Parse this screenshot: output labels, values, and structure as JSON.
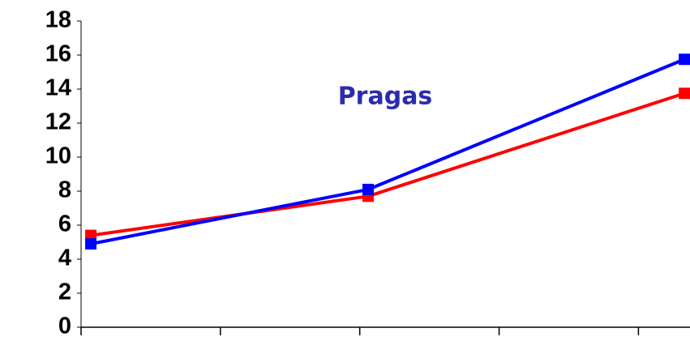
{
  "chart_data": {
    "type": "line",
    "title": "Pragas",
    "x": [
      0.07,
      2.06,
      4.33
    ],
    "xlim": [
      0,
      4.37
    ],
    "xticks": [
      0,
      1,
      2,
      3,
      4
    ],
    "ylim": [
      0,
      18
    ],
    "yticks": [
      0,
      2,
      4,
      6,
      8,
      10,
      12,
      14,
      16,
      18
    ],
    "grid": false,
    "series": [
      {
        "color": "#ff0000",
        "values": [
          5.4,
          7.7,
          13.75
        ]
      },
      {
        "color": "#0000ff",
        "values": [
          4.9,
          8.1,
          15.75
        ]
      }
    ]
  }
}
